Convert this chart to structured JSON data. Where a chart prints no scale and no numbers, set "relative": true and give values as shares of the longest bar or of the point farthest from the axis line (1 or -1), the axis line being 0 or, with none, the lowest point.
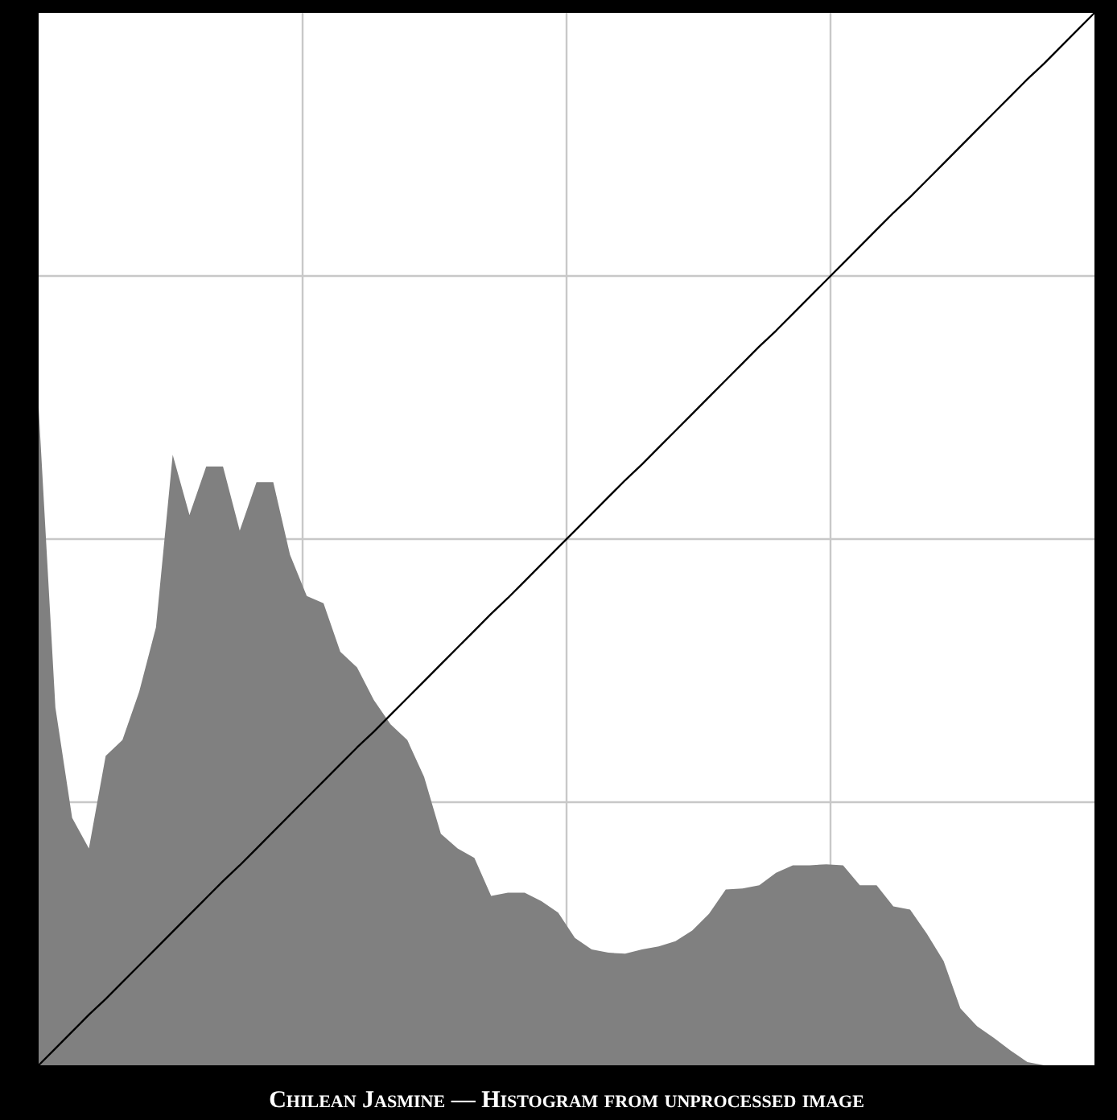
{
  "chart_data": {
    "type": "area",
    "title": "Chilean Jasmine — Histogram from unprocessed image",
    "relative": true,
    "color": "#808080",
    "grid": true,
    "categories": [
      null,
      null,
      null,
      null,
      null,
      null,
      null,
      null,
      null,
      null,
      null,
      null,
      null,
      null,
      null,
      null,
      null,
      null,
      null,
      null,
      null,
      null,
      null,
      null,
      null,
      null,
      null,
      null,
      null,
      null,
      null,
      null,
      null,
      null,
      null,
      null,
      null,
      null,
      null,
      null,
      null,
      null,
      null,
      null,
      null,
      null,
      null,
      null,
      null,
      null,
      null,
      null,
      null,
      null,
      null,
      null,
      null,
      null,
      null,
      null,
      null,
      null,
      null,
      null
    ],
    "values": [
      0.625,
      0.34,
      0.235,
      0.206,
      0.294,
      0.309,
      0.355,
      0.416,
      0.58,
      0.523,
      0.569,
      0.569,
      0.508,
      0.554,
      0.554,
      0.485,
      0.446,
      0.439,
      0.393,
      0.378,
      0.347,
      0.324,
      0.309,
      0.274,
      0.22,
      0.206,
      0.197,
      0.161,
      0.164,
      0.164,
      0.156,
      0.145,
      0.121,
      0.11,
      0.107,
      0.106,
      0.11,
      0.113,
      0.118,
      0.128,
      0.144,
      0.167,
      0.168,
      0.171,
      0.183,
      0.19,
      0.19,
      0.191,
      0.19,
      0.171,
      0.171,
      0.151,
      0.148,
      0.125,
      0.099,
      0.054,
      0.037,
      0.026,
      0.014,
      0.003,
      0,
      0,
      0,
      0
    ],
    "series": [
      {
        "type": "line",
        "color": "#000000",
        "values": [
          0,
          0.016,
          0.032,
          0.048,
          0.063,
          0.079,
          0.095,
          0.111,
          0.127,
          0.143,
          0.159,
          0.175,
          0.19,
          0.206,
          0.222,
          0.238,
          0.254,
          0.27,
          0.286,
          0.302,
          0.317,
          0.333,
          0.349,
          0.365,
          0.381,
          0.397,
          0.413,
          0.429,
          0.444,
          0.46,
          0.476,
          0.492,
          0.508,
          0.524,
          0.54,
          0.556,
          0.571,
          0.587,
          0.603,
          0.619,
          0.635,
          0.651,
          0.667,
          0.683,
          0.698,
          0.714,
          0.73,
          0.746,
          0.762,
          0.778,
          0.794,
          0.81,
          0.825,
          0.841,
          0.857,
          0.873,
          0.889,
          0.905,
          0.921,
          0.937,
          0.952,
          0.968,
          0.984,
          1
        ]
      }
    ]
  }
}
